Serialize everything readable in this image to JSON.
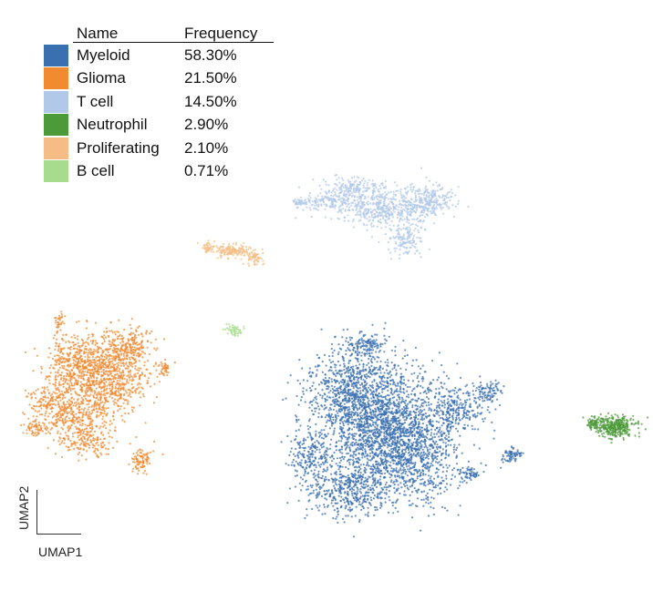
{
  "chart_data": {
    "type": "scatter",
    "title": "",
    "xlabel": "UMAP1",
    "ylabel": "UMAP2",
    "legend": {
      "placement": "top-left",
      "header_name": "Name",
      "header_frequency": "Frequency",
      "entries": [
        {
          "name": "Myeloid",
          "frequency": "58.30%",
          "color": "#3a6fb0"
        },
        {
          "name": "Glioma",
          "frequency": "21.50%",
          "color": "#f28a30"
        },
        {
          "name": "T cell",
          "frequency": "14.50%",
          "color": "#b2c8e8"
        },
        {
          "name": "Neutrophil",
          "frequency": "2.90%",
          "color": "#4c9a3a"
        },
        {
          "name": "Proliferating",
          "frequency": "2.10%",
          "color": "#f5bd85"
        },
        {
          "name": "B cell",
          "frequency": "0.71%",
          "color": "#a7dc8e"
        }
      ]
    },
    "grid": false,
    "axes_ticks": false
  }
}
